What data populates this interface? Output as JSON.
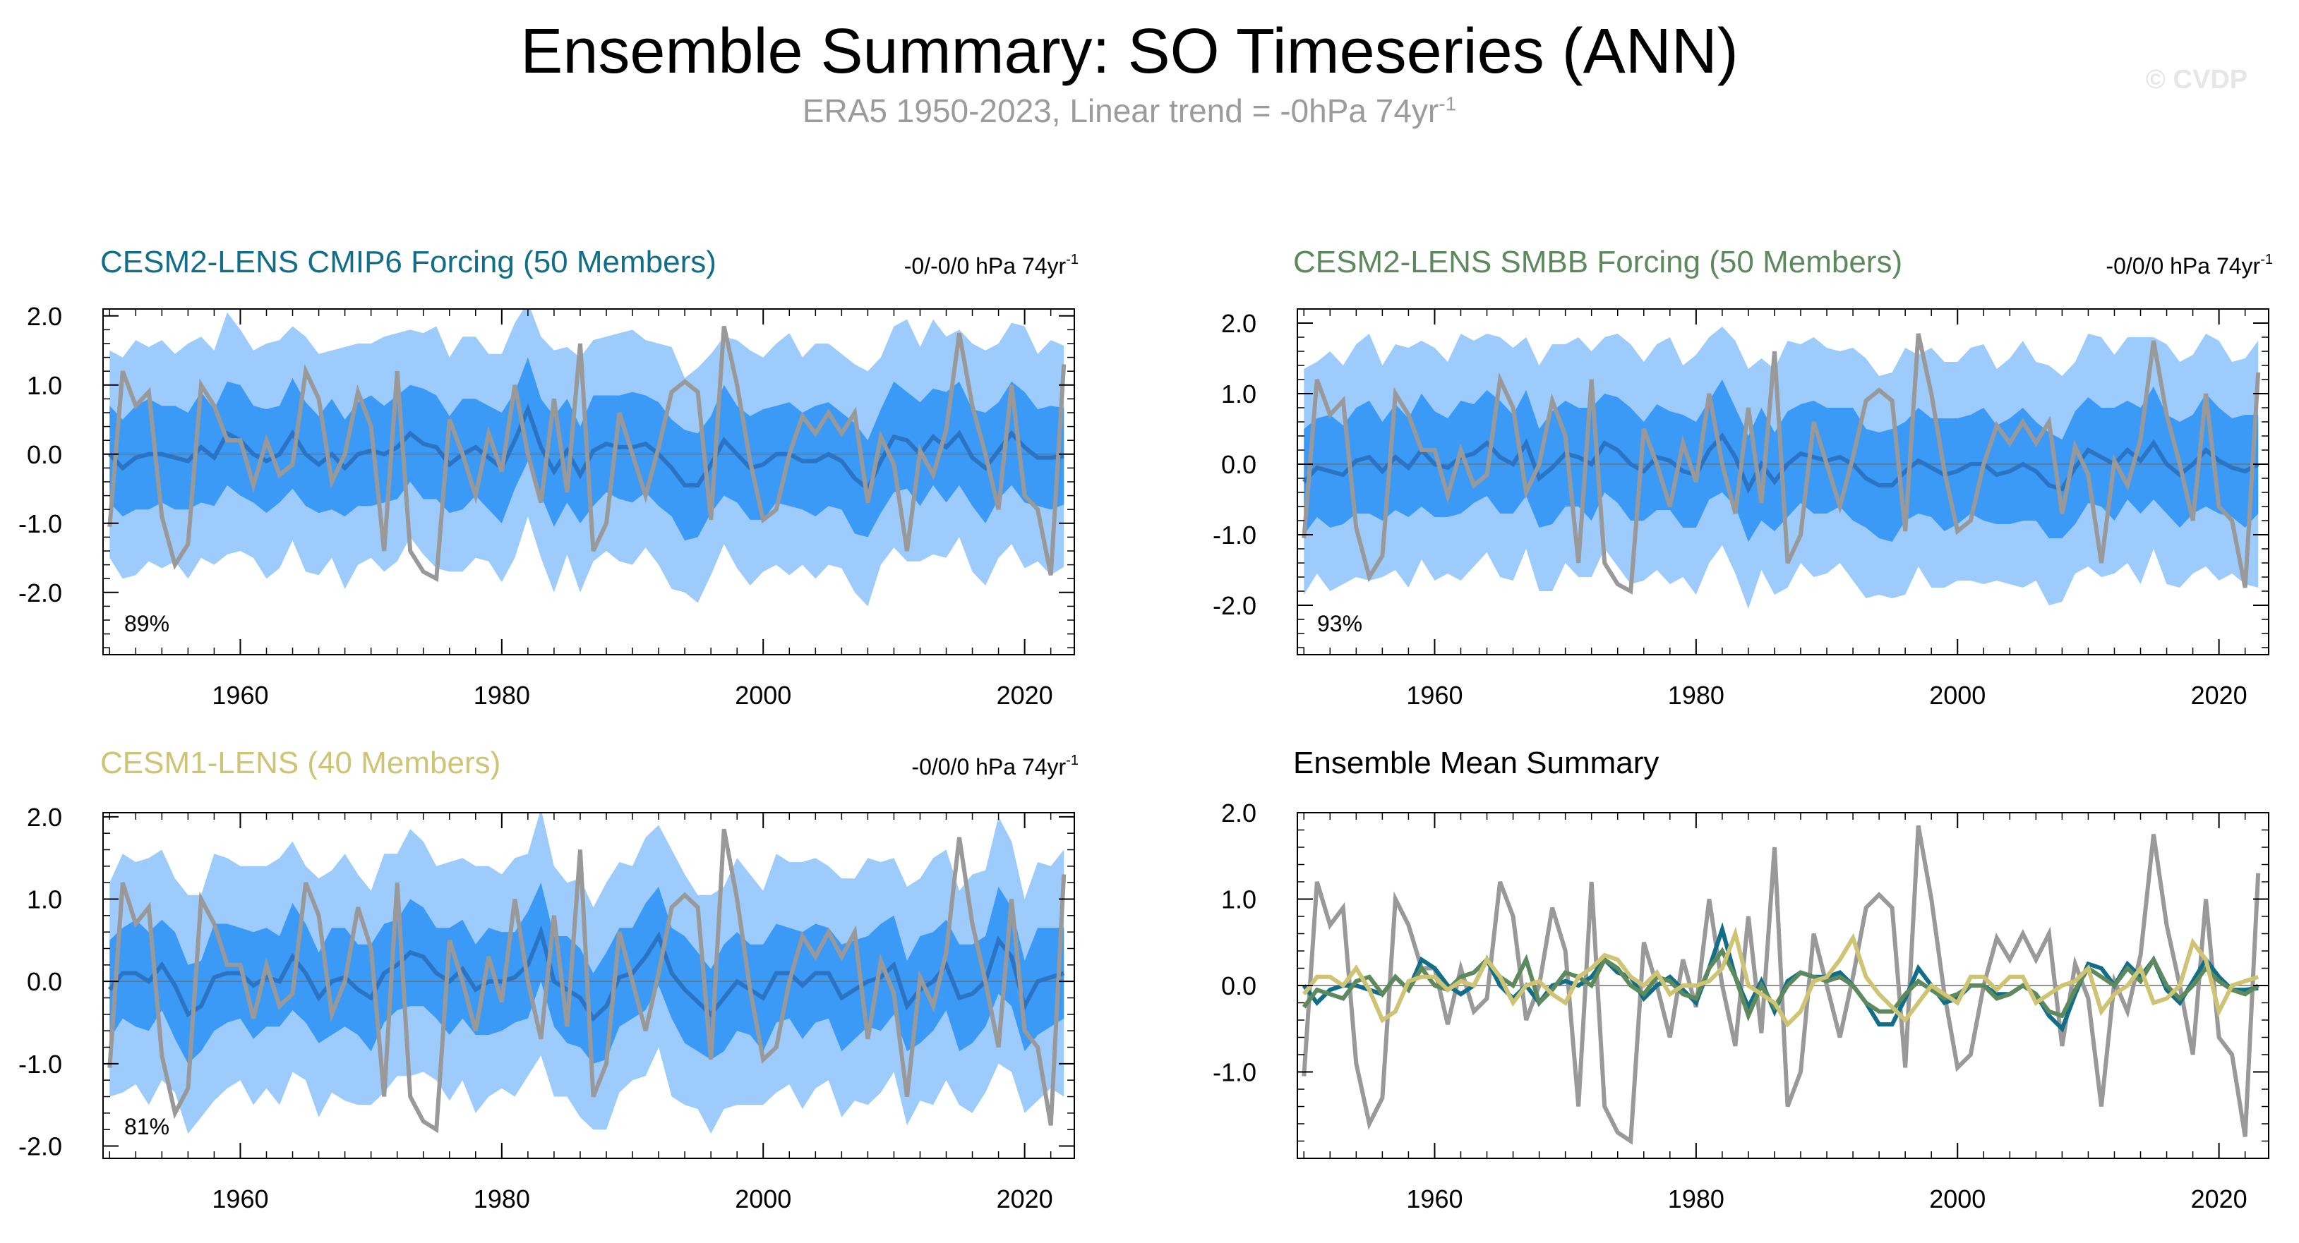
{
  "title": "Ensemble Summary: SO Timeseries (ANN)",
  "subtitle": "ERA5 1950-2023, Linear trend = -0hPa 74yr",
  "subtitle_sup": "-1",
  "watermark": "© CVDP",
  "colors": {
    "obs": "#999999",
    "cmip6": "#116e8a",
    "smbb": "#5d8a5d",
    "cesm1": "#cfc474",
    "mean_line": "#2b74c4",
    "inner_band": "#3c9af7",
    "outer_band": "#9dcbfb"
  },
  "chart_data": [
    {
      "type": "line",
      "id": "cmip6",
      "title": "CESM2-LENS CMIP6 Forcing (50 Members)",
      "title_color": "#116e8a",
      "trend_text": "-0/-0/0 hPa 74yr",
      "trend_sup": "-1",
      "percent_label": "89%",
      "x_start": 1950,
      "x_end": 2023,
      "xlim": [
        1949.5,
        2023.8
      ],
      "ylim": [
        -2.9,
        2.1
      ],
      "yticks": [
        "2.0",
        "1.0",
        "0.0",
        "-1.0",
        "-2.0"
      ],
      "ytick_values": [
        2.0,
        1.0,
        0.0,
        -1.0,
        -2.0
      ],
      "xticks": [
        "1960",
        "1980",
        "2000",
        "2020"
      ],
      "xtick_values": [
        1960,
        1980,
        2000,
        2020
      ],
      "ensemble_mean": [
        0.0,
        -0.2,
        -0.05,
        0.0,
        0.0,
        -0.05,
        -0.1,
        0.1,
        -0.05,
        0.3,
        0.2,
        0.0,
        -0.1,
        0.0,
        0.3,
        0.0,
        -0.15,
        0.0,
        -0.2,
        0.0,
        0.05,
        0.0,
        0.1,
        0.3,
        0.15,
        0.1,
        -0.15,
        0.0,
        0.1,
        -0.05,
        -0.2,
        0.2,
        0.65,
        0.1,
        -0.25,
        0.05,
        -0.3,
        0.05,
        0.15,
        0.1,
        0.1,
        0.15,
        0.0,
        -0.2,
        -0.45,
        -0.45,
        -0.15,
        0.2,
        0.0,
        -0.2,
        -0.15,
        0.0,
        0.0,
        -0.1,
        -0.1,
        0.0,
        -0.1,
        -0.35,
        -0.5,
        -0.1,
        0.25,
        0.2,
        0.0,
        0.25,
        0.1,
        0.3,
        -0.05,
        -0.2,
        0.05,
        0.3,
        0.1,
        -0.05,
        -0.05,
        -0.03
      ],
      "inner_spread": [
        0.7,
        0.7,
        0.75,
        0.8,
        0.7,
        0.75,
        0.7,
        0.8,
        0.7,
        0.75,
        0.8,
        0.7,
        0.75,
        0.7,
        0.8,
        0.75,
        0.7,
        0.8,
        0.7,
        0.75,
        0.8,
        0.7,
        0.75,
        0.7,
        0.8,
        0.75,
        0.7,
        0.8,
        0.7,
        0.75,
        0.8,
        0.7,
        0.75,
        0.7,
        0.8,
        0.75,
        0.7,
        0.8,
        0.7,
        0.75,
        0.8,
        0.7,
        0.75,
        0.7,
        0.8,
        0.75,
        0.7,
        0.8,
        0.7,
        0.75,
        0.8,
        0.7,
        0.75,
        0.7,
        0.8,
        0.75,
        0.7,
        0.8,
        0.7,
        0.75,
        0.8,
        0.7,
        0.75,
        0.7,
        0.8,
        0.75,
        0.7,
        0.8,
        0.7,
        0.75,
        0.8,
        0.7,
        0.75,
        0.7
      ],
      "outer_spread": [
        1.5,
        1.6,
        1.7,
        1.55,
        1.65,
        1.5,
        1.7,
        1.6,
        1.55,
        1.75,
        1.6,
        1.5,
        1.7,
        1.65,
        1.55,
        1.7,
        1.6,
        1.5,
        1.75,
        1.6,
        1.55,
        1.7,
        1.65,
        1.5,
        1.6,
        1.75,
        1.55,
        1.7,
        1.6,
        1.5,
        1.65,
        1.7,
        1.55,
        1.6,
        1.75,
        1.5,
        1.7,
        1.6,
        1.55,
        1.65,
        1.7,
        1.5,
        1.6,
        1.75,
        1.55,
        1.7,
        1.6,
        1.5,
        1.65,
        1.7,
        1.55,
        1.6,
        1.75,
        1.5,
        1.7,
        1.6,
        1.55,
        1.65,
        1.7,
        1.5,
        1.6,
        1.75,
        1.55,
        1.7,
        1.6,
        1.5,
        1.65,
        1.7,
        1.55,
        1.6,
        1.75,
        1.5,
        1.7,
        1.6
      ]
    },
    {
      "type": "line",
      "id": "smbb",
      "title": "CESM2-LENS SMBB Forcing (50 Members)",
      "title_color": "#5d8a5d",
      "trend_text": "-0/0/0 hPa 74yr",
      "trend_sup": "-1",
      "percent_label": "93%",
      "x_start": 1950,
      "x_end": 2023,
      "xlim": [
        1949.5,
        2023.8
      ],
      "ylim": [
        -2.7,
        2.2
      ],
      "yticks": [
        "2.0",
        "1.0",
        "0.0",
        "-1.0",
        "-2.0"
      ],
      "ytick_values": [
        2.0,
        1.0,
        0.0,
        -1.0,
        -2.0
      ],
      "xticks": [
        "1960",
        "1980",
        "2000",
        "2020"
      ],
      "xtick_values": [
        1960,
        1980,
        2000,
        2020
      ],
      "ensemble_mean": [
        -0.25,
        -0.05,
        -0.1,
        -0.15,
        0.05,
        0.1,
        -0.1,
        0.1,
        -0.05,
        0.2,
        0.0,
        -0.05,
        0.1,
        0.15,
        0.3,
        0.1,
        0.0,
        0.3,
        -0.2,
        -0.05,
        0.15,
        0.1,
        0.0,
        0.3,
        0.2,
        0.0,
        -0.1,
        0.1,
        0.05,
        -0.1,
        -0.15,
        0.2,
        0.4,
        0.1,
        -0.35,
        0.0,
        -0.25,
        0.0,
        0.15,
        0.1,
        0.05,
        0.1,
        0.0,
        -0.2,
        -0.3,
        -0.3,
        -0.1,
        0.05,
        -0.05,
        -0.15,
        -0.1,
        0.0,
        0.0,
        -0.15,
        -0.1,
        0.0,
        -0.1,
        -0.3,
        -0.35,
        -0.05,
        0.2,
        0.1,
        0.0,
        0.2,
        0.05,
        0.3,
        0.0,
        -0.15,
        0.0,
        0.2,
        0.05,
        -0.05,
        -0.1,
        0.0
      ],
      "inner_spread": [
        0.75,
        0.7,
        0.8,
        0.7,
        0.75,
        0.8,
        0.7,
        0.75,
        0.7,
        0.8,
        0.75,
        0.7,
        0.8,
        0.7,
        0.75,
        0.8,
        0.7,
        0.75,
        0.7,
        0.8,
        0.75,
        0.7,
        0.8,
        0.7,
        0.75,
        0.8,
        0.7,
        0.75,
        0.7,
        0.8,
        0.75,
        0.7,
        0.8,
        0.7,
        0.75,
        0.8,
        0.7,
        0.75,
        0.7,
        0.8,
        0.75,
        0.7,
        0.8,
        0.7,
        0.75,
        0.8,
        0.7,
        0.75,
        0.7,
        0.8,
        0.75,
        0.7,
        0.8,
        0.7,
        0.75,
        0.8,
        0.7,
        0.75,
        0.7,
        0.8,
        0.75,
        0.7,
        0.8,
        0.7,
        0.75,
        0.8,
        0.7,
        0.75,
        0.7,
        0.8,
        0.75,
        0.7,
        0.8,
        0.7
      ],
      "outer_spread": [
        1.6,
        1.5,
        1.7,
        1.55,
        1.65,
        1.75,
        1.5,
        1.6,
        1.7,
        1.55,
        1.65,
        1.5,
        1.75,
        1.6,
        1.55,
        1.7,
        1.65,
        1.5,
        1.6,
        1.75,
        1.55,
        1.7,
        1.6,
        1.5,
        1.65,
        1.7,
        1.55,
        1.6,
        1.75,
        1.5,
        1.7,
        1.6,
        1.55,
        1.65,
        1.7,
        1.5,
        1.6,
        1.75,
        1.55,
        1.7,
        1.6,
        1.5,
        1.65,
        1.7,
        1.55,
        1.6,
        1.75,
        1.5,
        1.7,
        1.6,
        1.55,
        1.65,
        1.7,
        1.5,
        1.6,
        1.75,
        1.55,
        1.7,
        1.6,
        1.5,
        1.65,
        1.7,
        1.55,
        1.6,
        1.75,
        1.5,
        1.7,
        1.6,
        1.55,
        1.65,
        1.7,
        1.5,
        1.6,
        1.75
      ]
    },
    {
      "type": "line",
      "id": "cesm1",
      "title": "CESM1-LENS (40 Members)",
      "title_color": "#cfc474",
      "trend_text": "-0/0/0 hPa 74yr",
      "trend_sup": "-1",
      "percent_label": "81%",
      "x_start": 1950,
      "x_end": 2023,
      "xlim": [
        1949.5,
        2023.8
      ],
      "ylim": [
        -2.15,
        2.05
      ],
      "yticks": [
        "2.0",
        "1.0",
        "0.0",
        "-1.0",
        "-2.0"
      ],
      "ytick_values": [
        2.0,
        1.0,
        0.0,
        -1.0,
        -2.0
      ],
      "xticks": [
        "1960",
        "1980",
        "2000",
        "2020"
      ],
      "xtick_values": [
        1960,
        1980,
        2000,
        2020
      ],
      "ensemble_mean": [
        -0.1,
        0.1,
        0.1,
        0.0,
        0.2,
        -0.05,
        -0.4,
        -0.3,
        0.05,
        0.1,
        0.1,
        -0.05,
        0.05,
        0.0,
        0.3,
        0.1,
        -0.2,
        0.0,
        0.05,
        -0.1,
        -0.2,
        0.1,
        0.2,
        0.35,
        0.3,
        0.1,
        0.0,
        0.15,
        -0.1,
        0.0,
        0.0,
        0.05,
        0.2,
        0.6,
        0.0,
        -0.1,
        -0.2,
        -0.45,
        -0.3,
        0.05,
        0.1,
        0.3,
        0.55,
        0.1,
        -0.1,
        -0.25,
        -0.4,
        -0.2,
        0.0,
        -0.1,
        -0.2,
        0.1,
        0.1,
        -0.05,
        0.1,
        0.1,
        -0.2,
        -0.1,
        0.0,
        0.05,
        0.2,
        -0.3,
        -0.1,
        0.0,
        0.2,
        -0.2,
        -0.15,
        0.0,
        0.5,
        0.3,
        -0.3,
        0.0,
        0.05,
        0.1
      ],
      "inner_spread": [
        0.6,
        0.55,
        0.65,
        0.6,
        0.55,
        0.65,
        0.6,
        0.55,
        0.65,
        0.6,
        0.55,
        0.65,
        0.6,
        0.55,
        0.65,
        0.6,
        0.55,
        0.65,
        0.6,
        0.55,
        0.65,
        0.6,
        0.55,
        0.65,
        0.6,
        0.55,
        0.65,
        0.6,
        0.55,
        0.65,
        0.6,
        0.55,
        0.65,
        0.6,
        0.55,
        0.65,
        0.6,
        0.55,
        0.65,
        0.6,
        0.55,
        0.65,
        0.6,
        0.55,
        0.65,
        0.6,
        0.55,
        0.65,
        0.6,
        0.55,
        0.65,
        0.6,
        0.55,
        0.65,
        0.6,
        0.55,
        0.65,
        0.6,
        0.55,
        0.65,
        0.6,
        0.55,
        0.65,
        0.6,
        0.55,
        0.65,
        0.6,
        0.55,
        0.65,
        0.6,
        0.55,
        0.65,
        0.6,
        0.55
      ],
      "outer_spread": [
        1.3,
        1.45,
        1.35,
        1.5,
        1.4,
        1.3,
        1.45,
        1.35,
        1.5,
        1.4,
        1.3,
        1.45,
        1.35,
        1.5,
        1.4,
        1.3,
        1.45,
        1.35,
        1.5,
        1.4,
        1.3,
        1.45,
        1.35,
        1.5,
        1.4,
        1.3,
        1.45,
        1.35,
        1.5,
        1.4,
        1.3,
        1.45,
        1.35,
        1.5,
        1.4,
        1.3,
        1.45,
        1.35,
        1.5,
        1.4,
        1.3,
        1.45,
        1.35,
        1.5,
        1.4,
        1.3,
        1.45,
        1.35,
        1.5,
        1.4,
        1.3,
        1.45,
        1.35,
        1.5,
        1.4,
        1.3,
        1.45,
        1.35,
        1.5,
        1.4,
        1.3,
        1.45,
        1.35,
        1.5,
        1.4,
        1.3,
        1.45,
        1.35,
        1.5,
        1.4,
        1.3,
        1.45,
        1.35,
        1.5
      ]
    },
    {
      "type": "line",
      "id": "summary",
      "title": "Ensemble Mean Summary",
      "title_color": "#000000",
      "x_start": 1950,
      "x_end": 2023,
      "xlim": [
        1949.5,
        2023.8
      ],
      "ylim": [
        -2.0,
        2.0
      ],
      "yticks": [
        "2.0",
        "1.0",
        "0.0",
        "-1.0"
      ],
      "ytick_values": [
        2.0,
        1.0,
        0.0,
        -1.0
      ],
      "xticks": [
        "1960",
        "1980",
        "2000",
        "2020"
      ],
      "xtick_values": [
        1960,
        1980,
        2000,
        2020
      ]
    }
  ],
  "observations": {
    "name": "ERA5",
    "values": [
      -1.05,
      1.2,
      0.7,
      0.9,
      -0.9,
      -1.6,
      -1.3,
      1.0,
      0.7,
      0.2,
      0.2,
      -0.45,
      0.2,
      -0.3,
      -0.15,
      1.2,
      0.8,
      -0.4,
      0.0,
      0.9,
      0.4,
      -1.4,
      1.2,
      -1.4,
      -1.7,
      -1.8,
      0.5,
      0.0,
      -0.6,
      0.3,
      -0.25,
      1.0,
      0.0,
      -0.7,
      0.8,
      -0.55,
      1.6,
      -1.4,
      -1.0,
      0.6,
      0.0,
      -0.6,
      0.1,
      0.9,
      1.05,
      0.9,
      -0.95,
      1.85,
      1.0,
      -0.1,
      -0.95,
      -0.8,
      0.0,
      0.55,
      0.3,
      0.6,
      0.3,
      0.6,
      -0.7,
      0.25,
      -0.15,
      -1.4,
      0.05,
      -0.3,
      0.35,
      1.75,
      0.7,
      0.0,
      -0.8,
      1.0,
      -0.6,
      -0.8,
      -1.75,
      1.3
    ]
  }
}
